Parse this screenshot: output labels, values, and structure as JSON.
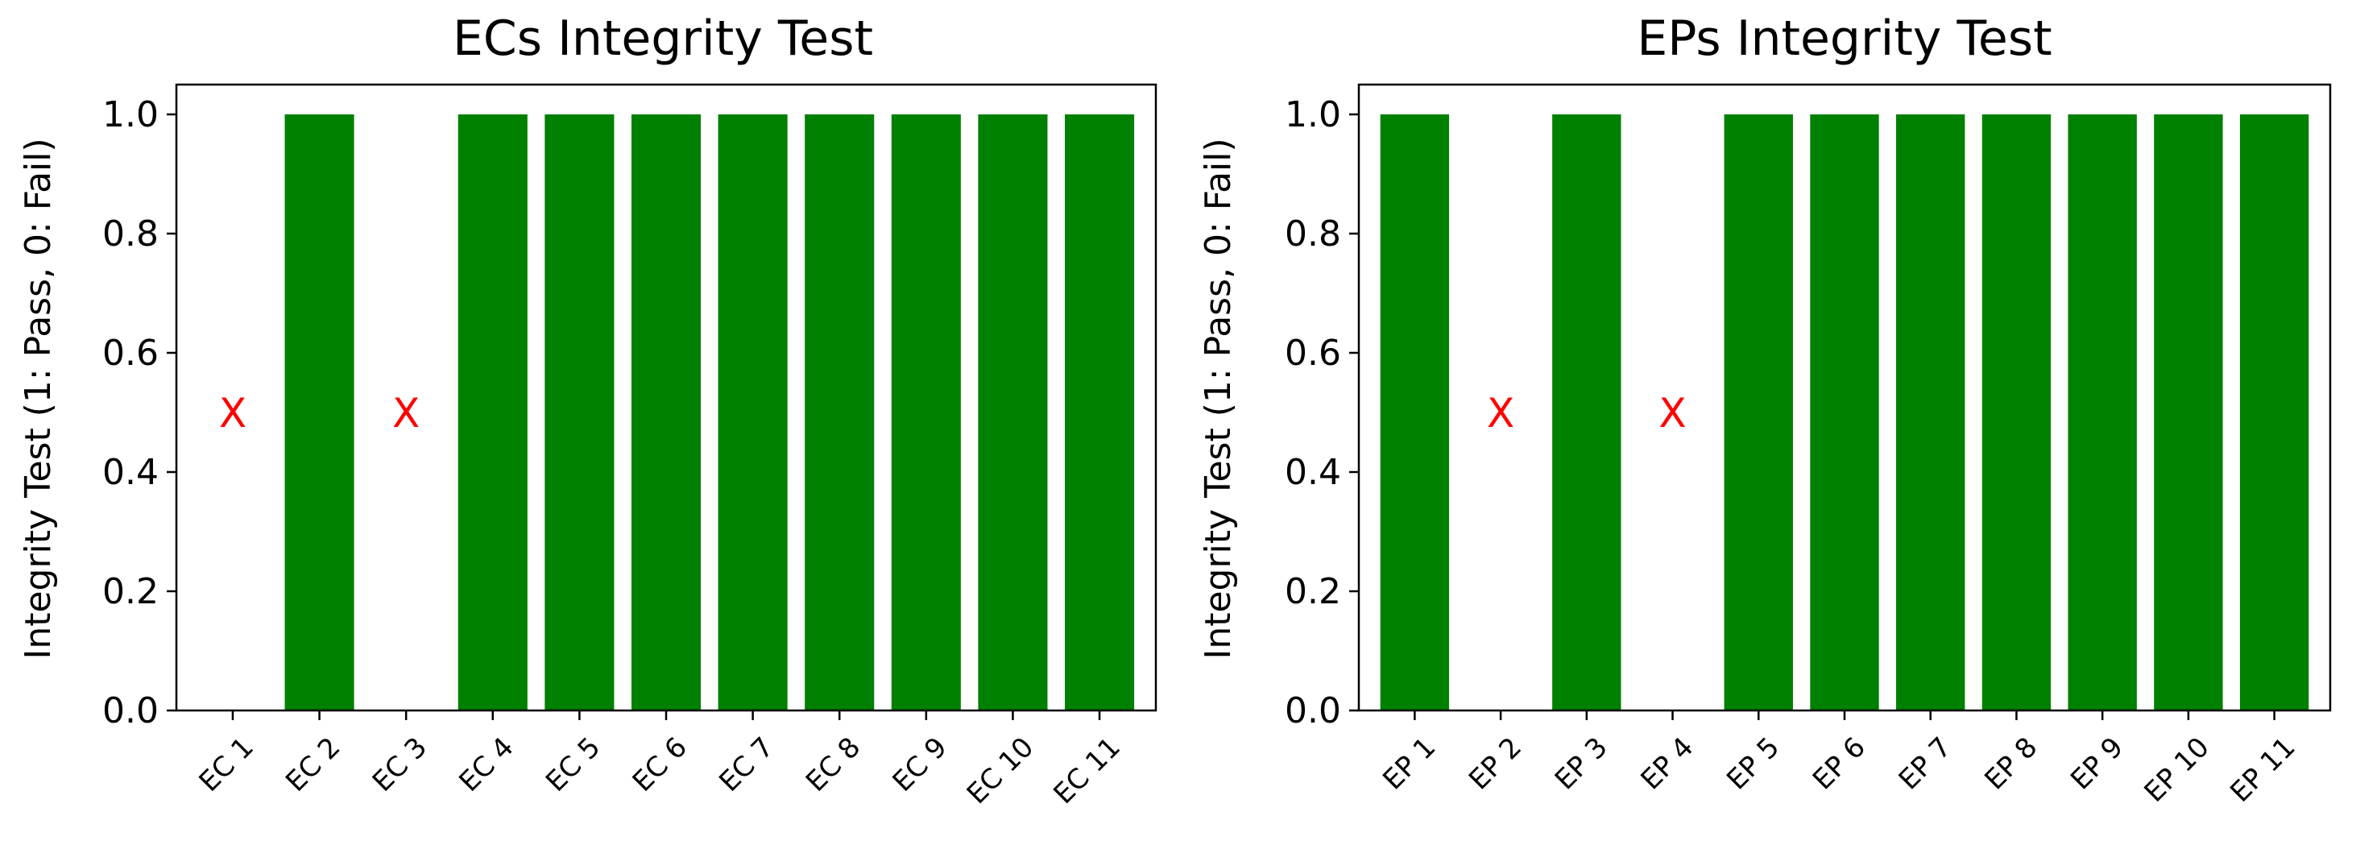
{
  "chart_data": [
    {
      "type": "bar",
      "title": "ECs Integrity Test",
      "xlabel": "",
      "ylabel": "Integrity Test (1: Pass, 0: Fail)",
      "categories": [
        "EC 1",
        "EC 2",
        "EC 3",
        "EC 4",
        "EC 5",
        "EC 6",
        "EC 7",
        "EC 8",
        "EC 9",
        "EC 10",
        "EC 11"
      ],
      "values": [
        0,
        1,
        0,
        1,
        1,
        1,
        1,
        1,
        1,
        1,
        1
      ],
      "fail_marker": "X",
      "ylim": [
        0,
        1.05
      ],
      "yticks": [
        "0.0",
        "0.2",
        "0.4",
        "0.6",
        "0.8",
        "1.0"
      ],
      "grid": false,
      "bar_color": "#008000",
      "fail_marker_color": "#ff0000"
    },
    {
      "type": "bar",
      "title": "EPs Integrity Test",
      "xlabel": "",
      "ylabel": "Integrity Test (1: Pass, 0: Fail)",
      "categories": [
        "EP 1",
        "EP 2",
        "EP 3",
        "EP 4",
        "EP 5",
        "EP 6",
        "EP 7",
        "EP 8",
        "EP 9",
        "EP 10",
        "EP 11"
      ],
      "values": [
        1,
        0,
        1,
        0,
        1,
        1,
        1,
        1,
        1,
        1,
        1
      ],
      "fail_marker": "X",
      "ylim": [
        0,
        1.05
      ],
      "yticks": [
        "0.0",
        "0.2",
        "0.4",
        "0.6",
        "0.8",
        "1.0"
      ],
      "grid": false,
      "bar_color": "#008000",
      "fail_marker_color": "#ff0000"
    }
  ]
}
